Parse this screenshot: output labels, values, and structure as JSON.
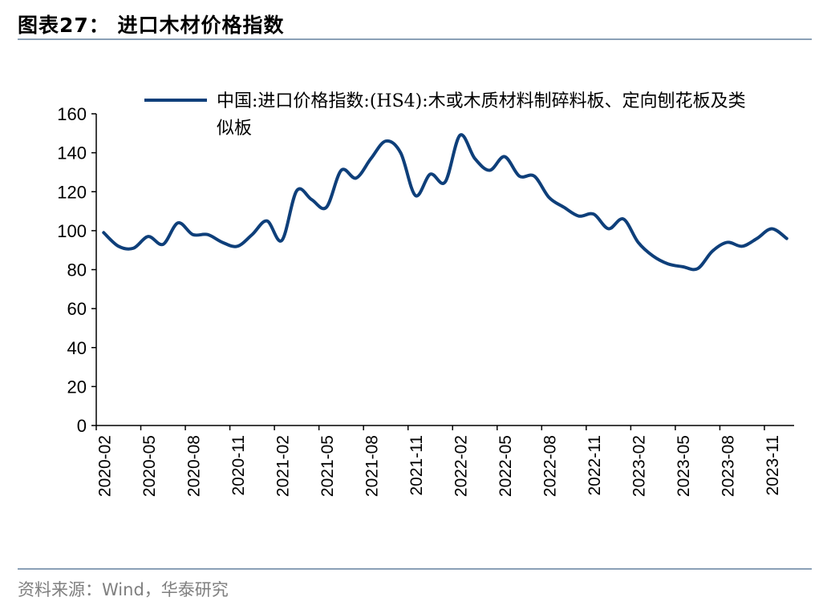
{
  "header": {
    "title": "图表27：  进口木材价格指数"
  },
  "footer": {
    "source": "资料来源：Wind，华泰研究"
  },
  "colors": {
    "line": "#0e3f7a",
    "rule": "#8aa0b6",
    "axis": "#000000"
  },
  "chart_data": {
    "type": "line",
    "title": "进口木材价格指数",
    "xlabel": "",
    "ylabel": "",
    "ylim": [
      0,
      160
    ],
    "yticks": [
      "0",
      "20",
      "40",
      "60",
      "80",
      "100",
      "120",
      "140",
      "160"
    ],
    "xtick_labels": [
      "2020-02",
      "2020-05",
      "2020-08",
      "2020-11",
      "2021-02",
      "2021-05",
      "2021-08",
      "2021-11",
      "2022-02",
      "2022-05",
      "2022-08",
      "2022-11",
      "2023-02",
      "2023-05",
      "2023-08",
      "2023-11"
    ],
    "legend_position": "top",
    "x": [
      "2020-02",
      "2020-03",
      "2020-04",
      "2020-05",
      "2020-06",
      "2020-07",
      "2020-08",
      "2020-09",
      "2020-10",
      "2020-11",
      "2020-12",
      "2021-01",
      "2021-02",
      "2021-03",
      "2021-04",
      "2021-05",
      "2021-06",
      "2021-07",
      "2021-08",
      "2021-09",
      "2021-10",
      "2021-11",
      "2021-12",
      "2022-01",
      "2022-02",
      "2022-03",
      "2022-04",
      "2022-05",
      "2022-06",
      "2022-07",
      "2022-08",
      "2022-09",
      "2022-10",
      "2022-11",
      "2022-12",
      "2023-01",
      "2023-02",
      "2023-03",
      "2023-04",
      "2023-05",
      "2023-06",
      "2023-07",
      "2023-08",
      "2023-09",
      "2023-10",
      "2023-11",
      "2023-12"
    ],
    "series": [
      {
        "name": "中国:进口价格指数:(HS4):木或木质材料制碎料板、定向刨花板及类似板",
        "values": [
          99,
          92,
          91,
          97,
          93,
          104,
          98,
          98,
          94,
          92,
          98,
          105,
          95,
          120.5,
          116,
          112,
          131,
          127,
          137,
          146,
          140,
          118,
          129,
          125,
          149,
          137,
          131,
          138,
          128,
          128,
          117,
          112,
          107.5,
          108.5,
          101,
          106,
          94,
          87,
          83,
          81.5,
          80.5,
          89.5,
          94,
          92,
          96,
          101,
          96
        ]
      }
    ]
  }
}
